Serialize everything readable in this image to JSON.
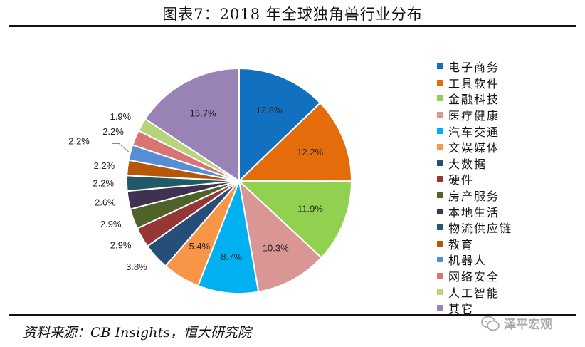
{
  "title": "图表7：2018 年全球独角兽行业分布",
  "source": "资料来源：CB Insights，恒大研究院",
  "watermark": "泽平宏观",
  "chart_data": {
    "type": "pie",
    "title": "图表7：2018 年全球独角兽行业分布",
    "legend_position": "right",
    "start_angle": "12 o'clock, clockwise",
    "slices": [
      {
        "name": "电子商务",
        "value": 12.8,
        "label": "12.8%",
        "color": "#1270c0"
      },
      {
        "name": "工具软件",
        "value": 12.2,
        "label": "12.2%",
        "color": "#e46c0a"
      },
      {
        "name": "金融科技",
        "value": 11.9,
        "label": "11.9%",
        "color": "#92d050"
      },
      {
        "name": "医疗健康",
        "value": 10.3,
        "label": "10.3%",
        "color": "#da9694"
      },
      {
        "name": "汽车交通",
        "value": 8.7,
        "label": "8.7%",
        "color": "#00b0f0"
      },
      {
        "name": "文娱媒体",
        "value": 5.4,
        "label": "5.4%",
        "color": "#f79646"
      },
      {
        "name": "大数据",
        "value": 3.8,
        "label": "3.8%",
        "color": "#254e78"
      },
      {
        "name": "硬件",
        "value": 2.9,
        "label": "2.9%",
        "color": "#953735"
      },
      {
        "name": "房产服务",
        "value": 2.9,
        "label": "2.9%",
        "color": "#4f6228"
      },
      {
        "name": "本地生活",
        "value": 2.6,
        "label": "2.6%",
        "color": "#403151"
      },
      {
        "name": "物流供应链",
        "value": 2.2,
        "label": "2.2%",
        "color": "#215967"
      },
      {
        "name": "教育",
        "value": 2.2,
        "label": "2.2%",
        "color": "#b65708"
      },
      {
        "name": "机器人",
        "value": 2.2,
        "label": "2.2%",
        "color": "#558ed5"
      },
      {
        "name": "网络安全",
        "value": 2.2,
        "label": "2.2%",
        "color": "#d87474"
      },
      {
        "name": "人工智能",
        "value": 1.9,
        "label": "1.9%",
        "color": "#b7d37c"
      },
      {
        "name": "其它",
        "value": 15.7,
        "label": "15.7%",
        "color": "#9983b6"
      }
    ]
  }
}
